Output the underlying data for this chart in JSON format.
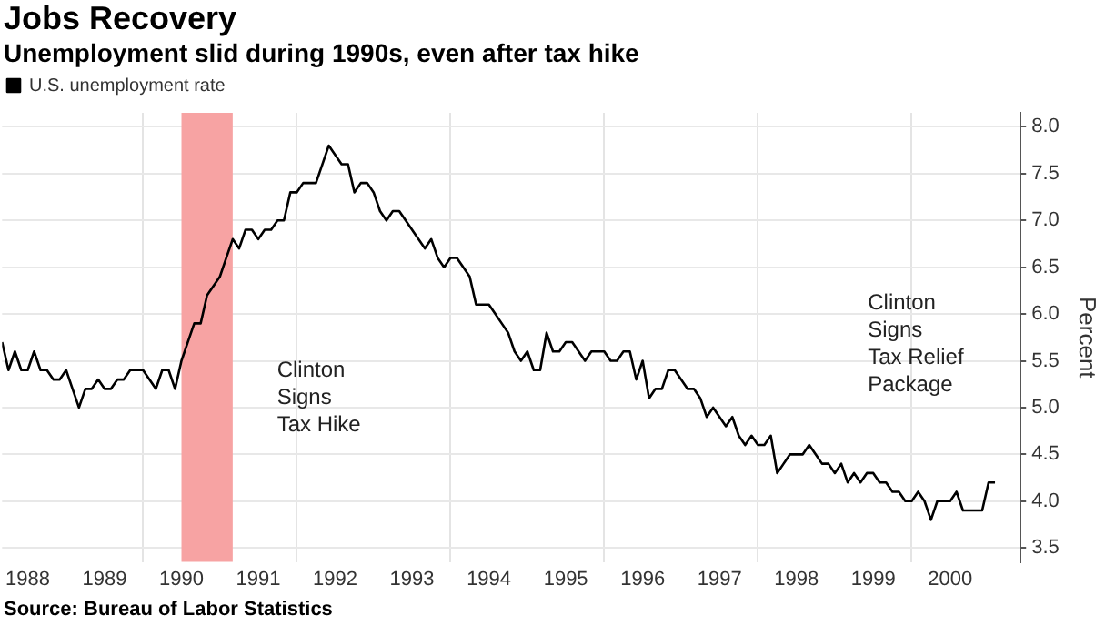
{
  "chart_data": {
    "type": "line",
    "title": "Jobs Recovery",
    "subtitle": "Unemployment slid during 1990s, even after tax hike",
    "ylabel": "Percent",
    "x": [
      "1988-03",
      "1988-04",
      "1988-05",
      "1988-06",
      "1988-07",
      "1988-08",
      "1988-09",
      "1988-10",
      "1988-11",
      "1988-12",
      "1989-01",
      "1989-02",
      "1989-03",
      "1989-04",
      "1989-05",
      "1989-06",
      "1989-07",
      "1989-08",
      "1989-09",
      "1989-10",
      "1989-11",
      "1989-12",
      "1990-01",
      "1990-02",
      "1990-03",
      "1990-04",
      "1990-05",
      "1990-06",
      "1990-07",
      "1990-08",
      "1990-09",
      "1990-10",
      "1990-11",
      "1990-12",
      "1991-01",
      "1991-02",
      "1991-03",
      "1991-04",
      "1991-05",
      "1991-06",
      "1991-07",
      "1991-08",
      "1991-09",
      "1991-10",
      "1991-11",
      "1991-12",
      "1992-01",
      "1992-02",
      "1992-03",
      "1992-04",
      "1992-05",
      "1992-06",
      "1992-07",
      "1992-08",
      "1992-09",
      "1992-10",
      "1992-11",
      "1992-12",
      "1993-01",
      "1993-02",
      "1993-03",
      "1993-04",
      "1993-05",
      "1993-06",
      "1993-07",
      "1993-08",
      "1993-09",
      "1993-10",
      "1993-11",
      "1993-12",
      "1994-01",
      "1994-02",
      "1994-03",
      "1994-04",
      "1994-05",
      "1994-06",
      "1994-07",
      "1994-08",
      "1994-09",
      "1994-10",
      "1994-11",
      "1994-12",
      "1995-01",
      "1995-02",
      "1995-03",
      "1995-04",
      "1995-05",
      "1995-06",
      "1995-07",
      "1995-08",
      "1995-09",
      "1995-10",
      "1995-11",
      "1995-12",
      "1996-01",
      "1996-02",
      "1996-03",
      "1996-04",
      "1996-05",
      "1996-06",
      "1996-07",
      "1996-08",
      "1996-09",
      "1996-10",
      "1996-11",
      "1996-12",
      "1997-01",
      "1997-02",
      "1997-03",
      "1997-04",
      "1997-05",
      "1997-06",
      "1997-07",
      "1997-08",
      "1997-09",
      "1997-10",
      "1997-11",
      "1997-12",
      "1998-01",
      "1998-02",
      "1998-03",
      "1998-04",
      "1998-05",
      "1998-06",
      "1998-07",
      "1998-08",
      "1998-09",
      "1998-10",
      "1998-11",
      "1998-12",
      "1999-01",
      "1999-02",
      "1999-03",
      "1999-04",
      "1999-05",
      "1999-06",
      "1999-07",
      "1999-08",
      "1999-09",
      "1999-10",
      "1999-11",
      "1999-12",
      "2000-01",
      "2000-02",
      "2000-03",
      "2000-04",
      "2000-05",
      "2000-06",
      "2000-07",
      "2000-08",
      "2000-09",
      "2000-10",
      "2000-11",
      "2000-12",
      "2001-01",
      "2001-02"
    ],
    "series": [
      {
        "name": "U.S. unemployment rate",
        "color": "#000000",
        "values": [
          5.7,
          5.4,
          5.6,
          5.4,
          5.4,
          5.6,
          5.4,
          5.4,
          5.3,
          5.3,
          5.4,
          5.2,
          5.0,
          5.2,
          5.2,
          5.3,
          5.2,
          5.2,
          5.3,
          5.3,
          5.4,
          5.4,
          5.4,
          5.3,
          5.2,
          5.4,
          5.4,
          5.2,
          5.5,
          5.7,
          5.9,
          5.9,
          6.2,
          6.3,
          6.4,
          6.6,
          6.8,
          6.7,
          6.9,
          6.9,
          6.8,
          6.9,
          6.9,
          7.0,
          7.0,
          7.3,
          7.3,
          7.4,
          7.4,
          7.4,
          7.6,
          7.8,
          7.7,
          7.6,
          7.6,
          7.3,
          7.4,
          7.4,
          7.3,
          7.1,
          7.0,
          7.1,
          7.1,
          7.0,
          6.9,
          6.8,
          6.7,
          6.8,
          6.6,
          6.5,
          6.6,
          6.6,
          6.5,
          6.4,
          6.1,
          6.1,
          6.1,
          6.0,
          5.9,
          5.8,
          5.6,
          5.5,
          5.6,
          5.4,
          5.4,
          5.8,
          5.6,
          5.6,
          5.7,
          5.7,
          5.6,
          5.5,
          5.6,
          5.6,
          5.6,
          5.5,
          5.5,
          5.6,
          5.6,
          5.3,
          5.5,
          5.1,
          5.2,
          5.2,
          5.4,
          5.4,
          5.3,
          5.2,
          5.2,
          5.1,
          4.9,
          5.0,
          4.9,
          4.8,
          4.9,
          4.7,
          4.6,
          4.7,
          4.6,
          4.6,
          4.7,
          4.3,
          4.4,
          4.5,
          4.5,
          4.5,
          4.6,
          4.5,
          4.4,
          4.4,
          4.3,
          4.4,
          4.2,
          4.3,
          4.2,
          4.3,
          4.3,
          4.2,
          4.2,
          4.1,
          4.1,
          4.0,
          4.0,
          4.1,
          4.0,
          3.8,
          4.0,
          4.0,
          4.0,
          4.1,
          3.9,
          3.9,
          3.9,
          3.9,
          4.2,
          4.2
        ]
      }
    ],
    "xlim": [
      "1988-03",
      "2001-06"
    ],
    "xticks": [
      {
        "value": "1988-07",
        "label": "1988"
      },
      {
        "value": "1989-07",
        "label": "1989"
      },
      {
        "value": "1990-01",
        "label": null
      },
      {
        "value": "1990-07",
        "label": "1990"
      },
      {
        "value": "1991-07",
        "label": "1991"
      },
      {
        "value": "1992-01",
        "label": null
      },
      {
        "value": "1992-07",
        "label": "1992"
      },
      {
        "value": "1993-07",
        "label": "1993"
      },
      {
        "value": "1994-01",
        "label": null
      },
      {
        "value": "1994-07",
        "label": "1994"
      },
      {
        "value": "1995-07",
        "label": "1995"
      },
      {
        "value": "1996-01",
        "label": null
      },
      {
        "value": "1996-07",
        "label": "1996"
      },
      {
        "value": "1997-07",
        "label": "1997"
      },
      {
        "value": "1998-01",
        "label": null
      },
      {
        "value": "1998-07",
        "label": "1998"
      },
      {
        "value": "1999-07",
        "label": "1999"
      },
      {
        "value": "2000-01",
        "label": null
      },
      {
        "value": "2000-07",
        "label": "2000"
      }
    ],
    "ylim": [
      3.35,
      8.15
    ],
    "yticks": [
      {
        "value": 3.5,
        "label": "3.5"
      },
      {
        "value": 4,
        "label": "4.0"
      },
      {
        "value": 4.5,
        "label": "4.5"
      },
      {
        "value": 5,
        "label": "5.0"
      },
      {
        "value": 5.5,
        "label": "5.5"
      },
      {
        "value": 6,
        "label": "6.0"
      },
      {
        "value": 6.5,
        "label": "6.5"
      },
      {
        "value": 7,
        "label": "7.0"
      },
      {
        "value": 7.5,
        "label": "7.5"
      },
      {
        "value": 8,
        "label": "8.0"
      }
    ],
    "bands": [
      {
        "axis": "x",
        "from": "1990-07",
        "to": "1991-03",
        "color": "#f7a3a3"
      }
    ],
    "annotations": [
      "Clinton\nSigns\nTax Hike",
      "Clinton\nSigns\nTax Relief\nPackage",
      "Source: Bureau of Labor Statistics"
    ],
    "grid": true,
    "legend": "top left",
    "marker": "none",
    "line_style": "solid"
  }
}
